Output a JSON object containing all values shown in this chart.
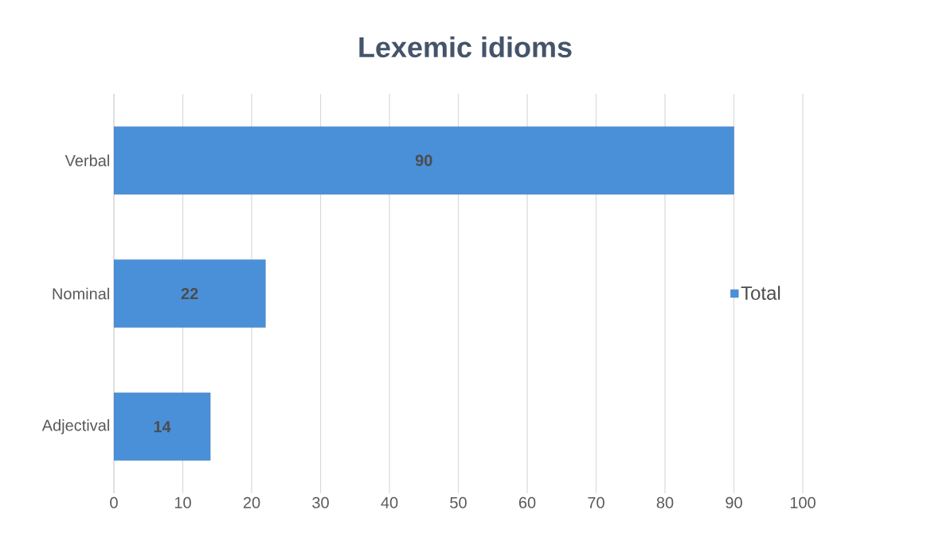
{
  "chart_data": {
    "type": "bar",
    "orientation": "horizontal",
    "title": "Lexemic idioms",
    "categories": [
      "Verbal",
      "Nominal",
      "Adjectival"
    ],
    "series": [
      {
        "name": "Total",
        "color": "#4a90d9",
        "values": [
          90,
          22,
          14
        ]
      }
    ],
    "xlim": [
      0,
      100
    ],
    "xticks": [
      0,
      10,
      20,
      30,
      40,
      50,
      60,
      70,
      80,
      90,
      100
    ],
    "grid": "x",
    "legend": "right",
    "data_labels": true
  }
}
